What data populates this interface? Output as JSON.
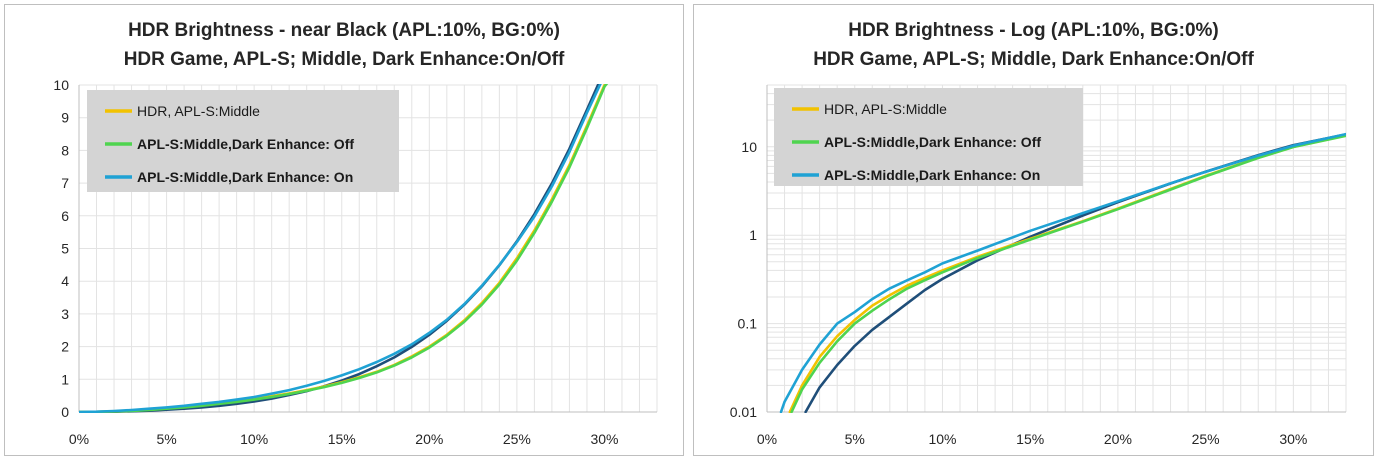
{
  "chart_data": [
    {
      "type": "line",
      "title": "HDR Brightness - near Black (APL:10%, BG:0%)",
      "subtitle": "HDR Game, APL-S; Middle, Dark Enhance:On/Off",
      "xlabel": "",
      "ylabel": "",
      "xlim": [
        0,
        33
      ],
      "ylim": [
        0,
        10
      ],
      "x_ticks": [
        "0%",
        "5%",
        "10%",
        "15%",
        "20%",
        "25%",
        "30%"
      ],
      "y_ticks": [
        "0",
        "1",
        "2",
        "3",
        "4",
        "5",
        "6",
        "7",
        "8",
        "9",
        "10"
      ],
      "grid": true,
      "legend": "top-left",
      "series": [
        {
          "name": "",
          "color": "#1f4e79",
          "points": [
            [
              0,
              0
            ],
            [
              2,
              0.01
            ],
            [
              3,
              0.02
            ],
            [
              4,
              0.04
            ],
            [
              5,
              0.07
            ],
            [
              6,
              0.1
            ],
            [
              7,
              0.14
            ],
            [
              8,
              0.19
            ],
            [
              9,
              0.25
            ],
            [
              10,
              0.32
            ],
            [
              11,
              0.41
            ],
            [
              12,
              0.52
            ],
            [
              13,
              0.64
            ],
            [
              14,
              0.79
            ],
            [
              15,
              0.96
            ],
            [
              16,
              1.16
            ],
            [
              17,
              1.4
            ],
            [
              18,
              1.67
            ],
            [
              19,
              1.99
            ],
            [
              20,
              2.36
            ],
            [
              21,
              2.79
            ],
            [
              22,
              3.28
            ],
            [
              23,
              3.84
            ],
            [
              24,
              4.49
            ],
            [
              25,
              5.22
            ],
            [
              26,
              6.05
            ],
            [
              27,
              6.99
            ],
            [
              28,
              8.05
            ],
            [
              29,
              9.24
            ],
            [
              30,
              10.45
            ]
          ]
        },
        {
          "name": "HDR, APL-S:Middle",
          "color": "#f2c200",
          "points": [
            [
              0,
              0
            ],
            [
              1,
              0.005
            ],
            [
              2,
              0.02
            ],
            [
              3,
              0.04
            ],
            [
              4,
              0.07
            ],
            [
              5,
              0.11
            ],
            [
              6,
              0.16
            ],
            [
              7,
              0.21
            ],
            [
              8,
              0.27
            ],
            [
              9,
              0.33
            ],
            [
              10,
              0.4
            ],
            [
              11,
              0.48
            ],
            [
              12,
              0.57
            ],
            [
              13,
              0.67
            ],
            [
              14,
              0.78
            ],
            [
              15,
              0.91
            ],
            [
              16,
              1.06
            ],
            [
              17,
              1.23
            ],
            [
              18,
              1.44
            ],
            [
              19,
              1.7
            ],
            [
              20,
              2.0
            ],
            [
              21,
              2.36
            ],
            [
              22,
              2.8
            ],
            [
              23,
              3.33
            ],
            [
              24,
              3.95
            ],
            [
              25,
              4.7
            ],
            [
              26,
              5.55
            ],
            [
              27,
              6.5
            ],
            [
              28,
              7.55
            ],
            [
              29,
              8.75
            ],
            [
              30,
              10.0
            ],
            [
              30.7,
              10.5
            ]
          ]
        },
        {
          "name": "APL-S:Middle,Dark Enhance: Off",
          "color": "#4fd44f",
          "points": [
            [
              0,
              0
            ],
            [
              1,
              0.005
            ],
            [
              2,
              0.018
            ],
            [
              3,
              0.035
            ],
            [
              4,
              0.06
            ],
            [
              5,
              0.1
            ],
            [
              6,
              0.14
            ],
            [
              7,
              0.19
            ],
            [
              8,
              0.25
            ],
            [
              9,
              0.31
            ],
            [
              10,
              0.38
            ],
            [
              11,
              0.46
            ],
            [
              12,
              0.55
            ],
            [
              13,
              0.65
            ],
            [
              14,
              0.76
            ],
            [
              15,
              0.89
            ],
            [
              16,
              1.04
            ],
            [
              17,
              1.21
            ],
            [
              18,
              1.42
            ],
            [
              19,
              1.67
            ],
            [
              20,
              1.97
            ],
            [
              21,
              2.33
            ],
            [
              22,
              2.76
            ],
            [
              23,
              3.28
            ],
            [
              24,
              3.9
            ],
            [
              25,
              4.63
            ],
            [
              26,
              5.48
            ],
            [
              27,
              6.43
            ],
            [
              28,
              7.48
            ],
            [
              29,
              8.68
            ],
            [
              30,
              9.95
            ],
            [
              30.8,
              10.5
            ]
          ]
        },
        {
          "name": "APL-S:Middle,Dark Enhance: On",
          "color": "#1fa2d4",
          "points": [
            [
              0,
              0
            ],
            [
              1,
              0.01
            ],
            [
              2,
              0.03
            ],
            [
              3,
              0.06
            ],
            [
              4,
              0.1
            ],
            [
              5,
              0.14
            ],
            [
              6,
              0.19
            ],
            [
              7,
              0.25
            ],
            [
              8,
              0.31
            ],
            [
              9,
              0.38
            ],
            [
              10,
              0.46
            ],
            [
              11,
              0.56
            ],
            [
              12,
              0.67
            ],
            [
              13,
              0.8
            ],
            [
              14,
              0.95
            ],
            [
              15,
              1.12
            ],
            [
              16,
              1.31
            ],
            [
              17,
              1.53
            ],
            [
              18,
              1.78
            ],
            [
              19,
              2.07
            ],
            [
              20,
              2.42
            ],
            [
              21,
              2.82
            ],
            [
              22,
              3.3
            ],
            [
              23,
              3.86
            ],
            [
              24,
              4.5
            ],
            [
              25,
              5.2
            ],
            [
              26,
              5.98
            ],
            [
              27,
              6.9
            ],
            [
              28,
              7.95
            ],
            [
              29,
              9.15
            ],
            [
              30,
              10.3
            ]
          ]
        }
      ]
    },
    {
      "type": "line",
      "title": "HDR Brightness - Log (APL:10%, BG:0%)",
      "subtitle": "HDR Game, APL-S; Middle, Dark Enhance:On/Off",
      "xlabel": "",
      "ylabel": "",
      "xlim": [
        0,
        33
      ],
      "ylim": [
        0.01,
        50
      ],
      "yscale": "log",
      "x_ticks": [
        "0%",
        "5%",
        "10%",
        "15%",
        "20%",
        "25%",
        "30%"
      ],
      "y_ticks": [
        "0.01",
        "0.1",
        "1",
        "10"
      ],
      "grid": true,
      "legend": "top-left",
      "series": [
        {
          "name": "",
          "color": "#1f4e79",
          "points": [
            [
              2.2,
              0.01
            ],
            [
              3,
              0.019
            ],
            [
              4,
              0.034
            ],
            [
              5,
              0.056
            ],
            [
              6,
              0.085
            ],
            [
              7,
              0.12
            ],
            [
              8,
              0.17
            ],
            [
              9,
              0.24
            ],
            [
              10,
              0.32
            ],
            [
              12,
              0.52
            ],
            [
              15,
              0.96
            ],
            [
              18,
              1.67
            ],
            [
              20,
              2.36
            ],
            [
              23,
              3.84
            ],
            [
              25,
              5.22
            ],
            [
              28,
              8.05
            ],
            [
              30,
              10.45
            ],
            [
              33,
              13.8
            ]
          ]
        },
        {
          "name": "HDR, APL-S:Middle",
          "color": "#f2c200",
          "points": [
            [
              1.3,
              0.01
            ],
            [
              2,
              0.02
            ],
            [
              3,
              0.042
            ],
            [
              4,
              0.072
            ],
            [
              5,
              0.11
            ],
            [
              6,
              0.16
            ],
            [
              7,
              0.21
            ],
            [
              8,
              0.27
            ],
            [
              9,
              0.33
            ],
            [
              10,
              0.4
            ],
            [
              12,
              0.57
            ],
            [
              15,
              0.91
            ],
            [
              18,
              1.44
            ],
            [
              20,
              2.0
            ],
            [
              23,
              3.33
            ],
            [
              25,
              4.7
            ],
            [
              28,
              7.55
            ],
            [
              30,
              10.0
            ],
            [
              33,
              13.5
            ]
          ]
        },
        {
          "name": "APL-S:Middle,Dark Enhance: Off",
          "color": "#4fd44f",
          "points": [
            [
              1.4,
              0.01
            ],
            [
              2,
              0.018
            ],
            [
              3,
              0.036
            ],
            [
              4,
              0.063
            ],
            [
              5,
              0.1
            ],
            [
              6,
              0.14
            ],
            [
              7,
              0.19
            ],
            [
              8,
              0.25
            ],
            [
              9,
              0.31
            ],
            [
              10,
              0.38
            ],
            [
              12,
              0.55
            ],
            [
              15,
              0.89
            ],
            [
              18,
              1.42
            ],
            [
              20,
              1.97
            ],
            [
              23,
              3.28
            ],
            [
              25,
              4.63
            ],
            [
              28,
              7.48
            ],
            [
              30,
              9.95
            ],
            [
              33,
              13.3
            ]
          ]
        },
        {
          "name": "APL-S:Middle,Dark Enhance: On",
          "color": "#1fa2d4",
          "points": [
            [
              0.8,
              0.01
            ],
            [
              1,
              0.013
            ],
            [
              2,
              0.03
            ],
            [
              3,
              0.058
            ],
            [
              4,
              0.1
            ],
            [
              5,
              0.135
            ],
            [
              6,
              0.19
            ],
            [
              7,
              0.25
            ],
            [
              8,
              0.31
            ],
            [
              9,
              0.38
            ],
            [
              10,
              0.48
            ],
            [
              12,
              0.67
            ],
            [
              15,
              1.12
            ],
            [
              18,
              1.78
            ],
            [
              20,
              2.42
            ],
            [
              23,
              3.86
            ],
            [
              25,
              5.2
            ],
            [
              28,
              7.95
            ],
            [
              30,
              10.3
            ],
            [
              33,
              13.9
            ]
          ]
        }
      ]
    }
  ]
}
